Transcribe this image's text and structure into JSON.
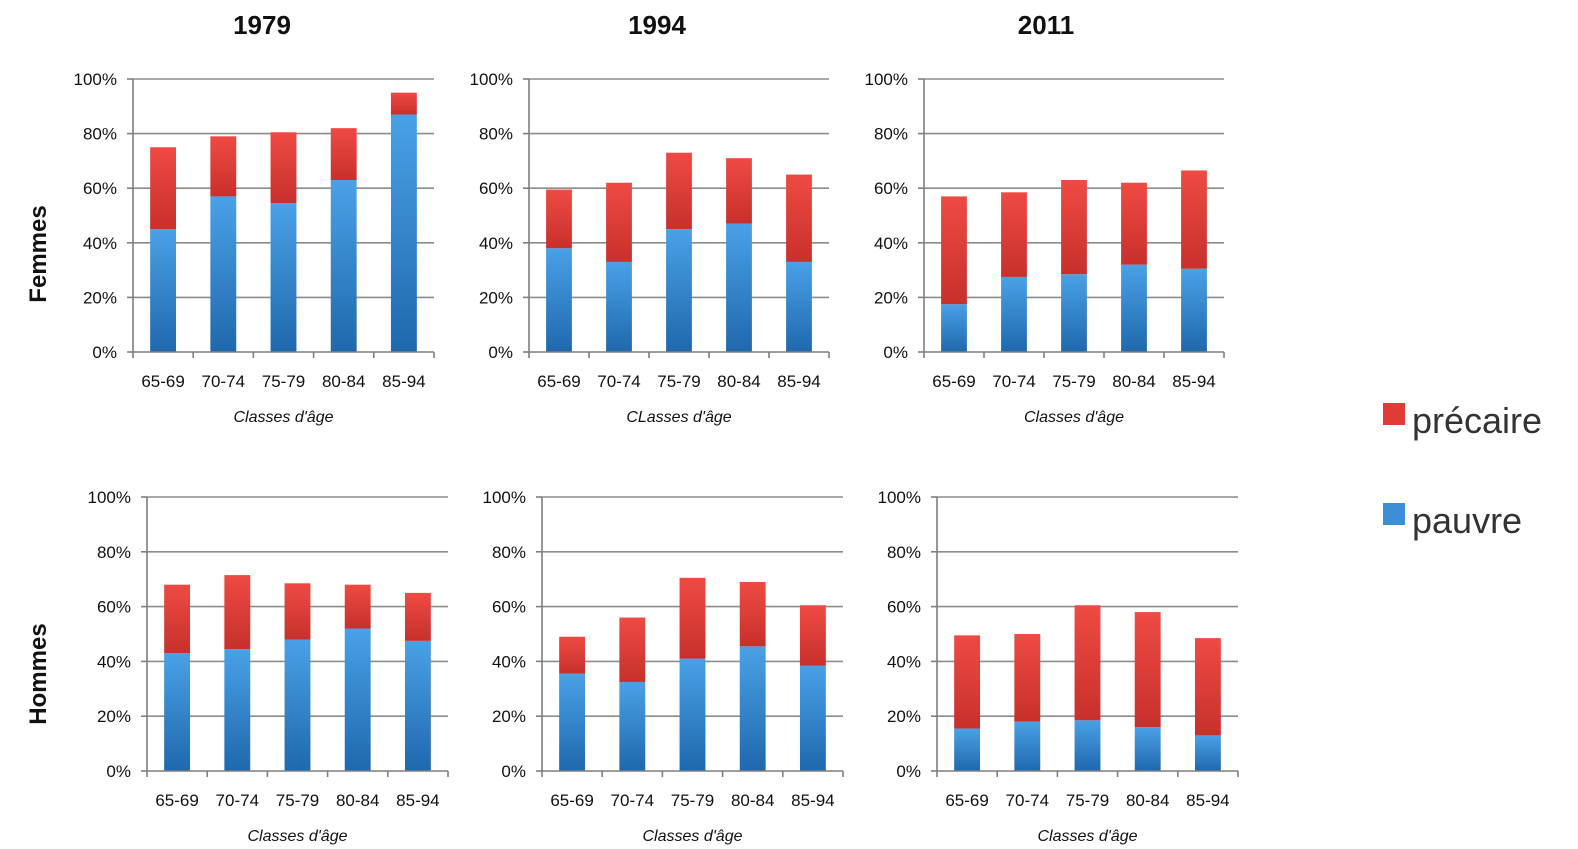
{
  "column_titles": [
    "1979",
    "1994",
    "2011"
  ],
  "row_titles": [
    "Femmes",
    "Hommes"
  ],
  "legend": [
    {
      "label": "précaire",
      "color": "#e03b35"
    },
    {
      "label": "pauvre",
      "color": "#3b8ed6"
    }
  ],
  "colors": {
    "precaire_top": "#ef4a44",
    "precaire_bottom": "#c8302b",
    "pauvre_top": "#4aa1e6",
    "pauvre_bottom": "#1f68ad"
  },
  "chart_data": [
    {
      "type": "bar",
      "stacked": true,
      "row": "Femmes",
      "column": "1979",
      "categories": [
        "65-69",
        "70-74",
        "75-79",
        "80-84",
        "85-94"
      ],
      "series": [
        {
          "name": "pauvre",
          "values": [
            0.45,
            0.57,
            0.545,
            0.63,
            0.87
          ]
        },
        {
          "name": "précaire",
          "values": [
            0.3,
            0.22,
            0.26,
            0.19,
            0.08
          ]
        }
      ],
      "xlabel": "Classes d'âge",
      "ylim": [
        0,
        1
      ],
      "yticks": [
        "0%",
        "20%",
        "40%",
        "60%",
        "80%",
        "100%"
      ],
      "grid": true
    },
    {
      "type": "bar",
      "stacked": true,
      "row": "Femmes",
      "column": "1994",
      "categories": [
        "65-69",
        "70-74",
        "75-79",
        "80-84",
        "85-94"
      ],
      "series": [
        {
          "name": "pauvre",
          "values": [
            0.38,
            0.33,
            0.45,
            0.47,
            0.33
          ]
        },
        {
          "name": "précaire",
          "values": [
            0.215,
            0.29,
            0.28,
            0.24,
            0.32
          ]
        }
      ],
      "xlabel": "CLasses d'âge",
      "ylim": [
        0,
        1
      ],
      "yticks": [
        "0%",
        "20%",
        "40%",
        "60%",
        "80%",
        "100%"
      ],
      "grid": true
    },
    {
      "type": "bar",
      "stacked": true,
      "row": "Femmes",
      "column": "2011",
      "categories": [
        "65-69",
        "70-74",
        "75-79",
        "80-84",
        "85-94"
      ],
      "series": [
        {
          "name": "pauvre",
          "values": [
            0.175,
            0.275,
            0.285,
            0.32,
            0.305
          ]
        },
        {
          "name": "précaire",
          "values": [
            0.395,
            0.31,
            0.345,
            0.3,
            0.36
          ]
        }
      ],
      "xlabel": "Classes d'âge",
      "ylim": [
        0,
        1
      ],
      "yticks": [
        "0%",
        "20%",
        "40%",
        "60%",
        "80%",
        "100%"
      ],
      "grid": true
    },
    {
      "type": "bar",
      "stacked": true,
      "row": "Hommes",
      "column": "1979",
      "categories": [
        "65-69",
        "70-74",
        "75-79",
        "80-84",
        "85-94"
      ],
      "series": [
        {
          "name": "pauvre",
          "values": [
            0.43,
            0.445,
            0.48,
            0.52,
            0.475
          ]
        },
        {
          "name": "précaire",
          "values": [
            0.25,
            0.27,
            0.205,
            0.16,
            0.175
          ]
        }
      ],
      "xlabel": "Classes d'âge",
      "ylim": [
        0,
        1
      ],
      "yticks": [
        "0%",
        "20%",
        "40%",
        "60%",
        "80%",
        "100%"
      ],
      "grid": true
    },
    {
      "type": "bar",
      "stacked": true,
      "row": "Hommes",
      "column": "1994",
      "categories": [
        "65-69",
        "70-74",
        "75-79",
        "80-84",
        "85-94"
      ],
      "series": [
        {
          "name": "pauvre",
          "values": [
            0.355,
            0.325,
            0.41,
            0.455,
            0.385
          ]
        },
        {
          "name": "précaire",
          "values": [
            0.135,
            0.235,
            0.295,
            0.235,
            0.22
          ]
        }
      ],
      "xlabel": "Classes d'âge",
      "ylim": [
        0,
        1
      ],
      "yticks": [
        "0%",
        "20%",
        "40%",
        "60%",
        "80%",
        "100%"
      ],
      "grid": true
    },
    {
      "type": "bar",
      "stacked": true,
      "row": "Hommes",
      "column": "2011",
      "categories": [
        "65-69",
        "70-74",
        "75-79",
        "80-84",
        "85-94"
      ],
      "series": [
        {
          "name": "pauvre",
          "values": [
            0.155,
            0.18,
            0.185,
            0.16,
            0.13
          ]
        },
        {
          "name": "précaire",
          "values": [
            0.34,
            0.32,
            0.42,
            0.42,
            0.355
          ]
        }
      ],
      "xlabel": "Classes d'âge",
      "ylim": [
        0,
        1
      ],
      "yticks": [
        "0%",
        "20%",
        "40%",
        "60%",
        "80%",
        "100%"
      ],
      "grid": true
    }
  ]
}
